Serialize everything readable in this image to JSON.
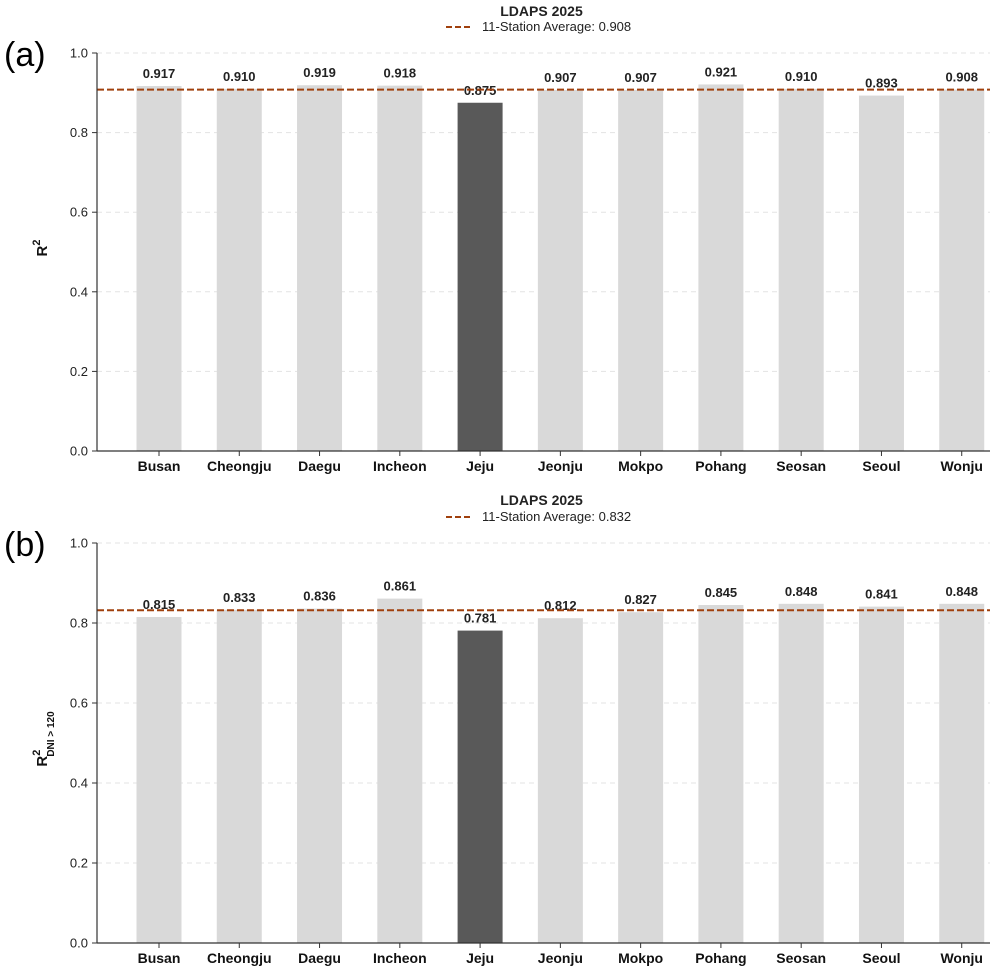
{
  "chart_data": [
    {
      "panel": "(a)",
      "type": "bar",
      "title": "LDAPS 2025",
      "ylabel": "R",
      "ylabel_sup": "2",
      "ylabel_sub": "",
      "ylim": [
        0,
        1.0
      ],
      "yticks": [
        0.0,
        0.2,
        0.4,
        0.6,
        0.8,
        1.0
      ],
      "categories": [
        "Busan",
        "Cheongju",
        "Daegu",
        "Incheon",
        "Jeju",
        "Jeonju",
        "Mokpo",
        "Pohang",
        "Seosan",
        "Seoul",
        "Wonju"
      ],
      "values": [
        0.917,
        0.91,
        0.919,
        0.918,
        0.875,
        0.907,
        0.907,
        0.921,
        0.91,
        0.893,
        0.908
      ],
      "value_labels": [
        "0.917",
        "0.910",
        "0.919",
        "0.918",
        "0.875",
        "0.907",
        "0.907",
        "0.921",
        "0.910",
        "0.893",
        "0.908"
      ],
      "highlight": "Jeju",
      "average": 0.908,
      "legend_label": "11-Station Average: 0.908",
      "legend_position": "top-center",
      "grid": "y-dashed",
      "colors": {
        "bar": "#d9d9d9",
        "highlight": "#595959",
        "average_line": "#a0400d"
      }
    },
    {
      "panel": "(b)",
      "type": "bar",
      "title": "LDAPS 2025",
      "ylabel": "R",
      "ylabel_sup": "2",
      "ylabel_sub": "DNI > 120",
      "ylim": [
        0,
        1.0
      ],
      "yticks": [
        0.0,
        0.2,
        0.4,
        0.6,
        0.8,
        1.0
      ],
      "categories": [
        "Busan",
        "Cheongju",
        "Daegu",
        "Incheon",
        "Jeju",
        "Jeonju",
        "Mokpo",
        "Pohang",
        "Seosan",
        "Seoul",
        "Wonju"
      ],
      "values": [
        0.815,
        0.833,
        0.836,
        0.861,
        0.781,
        0.812,
        0.827,
        0.845,
        0.848,
        0.841,
        0.848
      ],
      "value_labels": [
        "0.815",
        "0.833",
        "0.836",
        "0.861",
        "0.781",
        "0.812",
        "0.827",
        "0.845",
        "0.848",
        "0.841",
        "0.848"
      ],
      "highlight": "Jeju",
      "average": 0.832,
      "legend_label": "11-Station Average: 0.832",
      "legend_position": "top-center",
      "grid": "y-dashed",
      "colors": {
        "bar": "#d9d9d9",
        "highlight": "#595959",
        "average_line": "#a0400d"
      }
    }
  ]
}
